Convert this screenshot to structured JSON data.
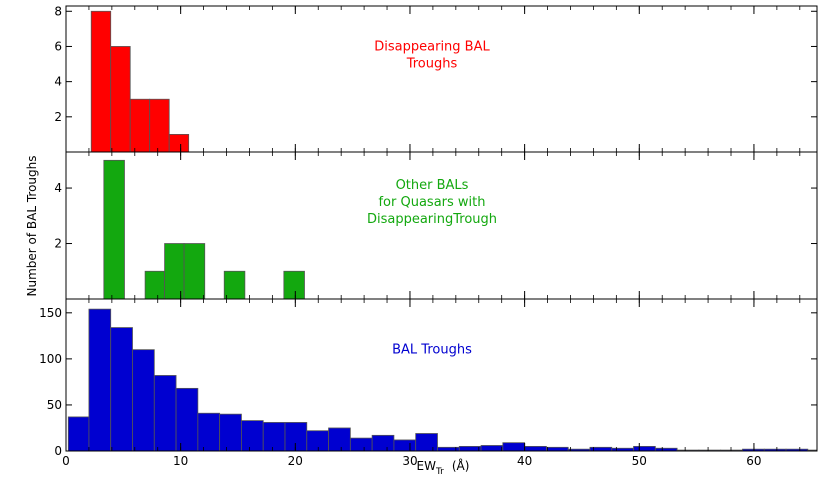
{
  "chart_data": {
    "type": "bar",
    "xlabel": "EW",
    "xlabel_sub": "Tr",
    "xlabel_unit": "(Å)",
    "ylabel": "Number of BAL Troughs",
    "xlim": [
      0,
      65.5
    ],
    "xticks": [
      "0",
      "10",
      "20",
      "30",
      "40",
      "50",
      "60"
    ],
    "panels": [
      {
        "annotation": [
          "Disappearing BAL",
          "Troughs"
        ],
        "color": "#ff0000",
        "ylim": [
          0,
          8.3
        ],
        "yticks": [
          "2",
          "4",
          "6",
          "8"
        ],
        "bins": [
          {
            "x0": 2.2,
            "x1": 3.9,
            "count": 8
          },
          {
            "x0": 3.9,
            "x1": 5.6,
            "count": 6
          },
          {
            "x0": 5.6,
            "x1": 7.3,
            "count": 3
          },
          {
            "x0": 7.3,
            "x1": 9.0,
            "count": 3
          },
          {
            "x0": 9.0,
            "x1": 10.7,
            "count": 1
          }
        ]
      },
      {
        "annotation": [
          "Other BALs",
          "for Quasars with",
          "DisappearingTrough"
        ],
        "color": "#13a80f",
        "ylim": [
          0,
          5.3
        ],
        "yticks": [
          "2",
          "4"
        ],
        "bins": [
          {
            "x0": 3.3,
            "x1": 5.1,
            "count": 5
          },
          {
            "x0": 6.9,
            "x1": 8.6,
            "count": 1
          },
          {
            "x0": 8.6,
            "x1": 10.3,
            "count": 2
          },
          {
            "x0": 10.3,
            "x1": 12.1,
            "count": 2
          },
          {
            "x0": 13.8,
            "x1": 15.6,
            "count": 1
          },
          {
            "x0": 19.0,
            "x1": 20.8,
            "count": 1
          }
        ]
      },
      {
        "annotation": [
          "BAL Troughs"
        ],
        "color": "#0000d0",
        "ylim": [
          0,
          165
        ],
        "yticks": [
          "0",
          "50",
          "100",
          "150"
        ],
        "bins": [
          {
            "x0": 0.2,
            "x1": 2.0,
            "count": 37
          },
          {
            "x0": 2.0,
            "x1": 3.9,
            "count": 154
          },
          {
            "x0": 3.9,
            "x1": 5.8,
            "count": 134
          },
          {
            "x0": 5.8,
            "x1": 7.7,
            "count": 110
          },
          {
            "x0": 7.7,
            "x1": 9.6,
            "count": 82
          },
          {
            "x0": 9.6,
            "x1": 11.5,
            "count": 68
          },
          {
            "x0": 11.5,
            "x1": 13.4,
            "count": 41
          },
          {
            "x0": 13.4,
            "x1": 15.3,
            "count": 40
          },
          {
            "x0": 15.3,
            "x1": 17.2,
            "count": 33
          },
          {
            "x0": 17.2,
            "x1": 19.1,
            "count": 31
          },
          {
            "x0": 19.1,
            "x1": 21.0,
            "count": 31
          },
          {
            "x0": 21.0,
            "x1": 22.9,
            "count": 22
          },
          {
            "x0": 22.9,
            "x1": 24.8,
            "count": 25
          },
          {
            "x0": 24.8,
            "x1": 26.7,
            "count": 14
          },
          {
            "x0": 26.7,
            "x1": 28.6,
            "count": 17
          },
          {
            "x0": 28.6,
            "x1": 30.5,
            "count": 12
          },
          {
            "x0": 30.5,
            "x1": 32.4,
            "count": 19
          },
          {
            "x0": 32.4,
            "x1": 34.3,
            "count": 4
          },
          {
            "x0": 34.3,
            "x1": 36.2,
            "count": 5
          },
          {
            "x0": 36.2,
            "x1": 38.1,
            "count": 6
          },
          {
            "x0": 38.1,
            "x1": 40.0,
            "count": 9
          },
          {
            "x0": 40.0,
            "x1": 41.9,
            "count": 5
          },
          {
            "x0": 41.9,
            "x1": 43.8,
            "count": 4
          },
          {
            "x0": 43.8,
            "x1": 45.7,
            "count": 2
          },
          {
            "x0": 45.7,
            "x1": 47.6,
            "count": 4
          },
          {
            "x0": 47.6,
            "x1": 49.5,
            "count": 3
          },
          {
            "x0": 49.5,
            "x1": 51.4,
            "count": 5
          },
          {
            "x0": 51.4,
            "x1": 53.3,
            "count": 3
          },
          {
            "x0": 53.3,
            "x1": 55.2,
            "count": 1
          },
          {
            "x0": 55.2,
            "x1": 57.1,
            "count": 1
          },
          {
            "x0": 57.1,
            "x1": 59.0,
            "count": 1
          },
          {
            "x0": 59.0,
            "x1": 60.9,
            "count": 2
          },
          {
            "x0": 60.9,
            "x1": 62.8,
            "count": 2
          },
          {
            "x0": 62.8,
            "x1": 64.7,
            "count": 2
          },
          {
            "x0": 64.7,
            "x1": 65.5,
            "count": 1
          }
        ]
      }
    ]
  }
}
